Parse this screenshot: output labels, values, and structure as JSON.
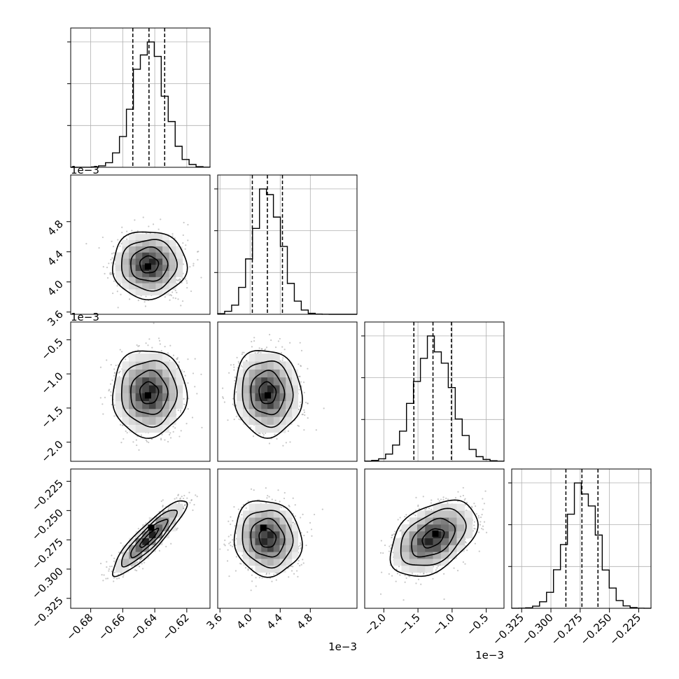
{
  "chart_data": {
    "type": "corner",
    "num_parameters": 4,
    "grid": true,
    "quantile_lines": "dashed",
    "parameters": [
      {
        "range": [
          -0.6925,
          -0.6055
        ],
        "x_ticks": [
          -0.68,
          -0.66,
          -0.64,
          -0.62
        ],
        "x_tick_labels": [
          "−0.68",
          "−0.66",
          "−0.64",
          "−0.62"
        ],
        "offset_text": "",
        "mean": -0.6436,
        "sd": 0.0098,
        "quantiles": [
          -0.6537,
          -0.6436,
          -0.6338
        ]
      },
      {
        "range": [
          3.57,
          5.42
        ],
        "x_ticks": [
          3.6,
          4.0,
          4.4,
          4.8
        ],
        "x_tick_labels": [
          "3.6",
          "4.0",
          "4.4",
          "4.8"
        ],
        "y_ticks": [
          3.6,
          4.0,
          4.4,
          4.8
        ],
        "y_tick_labels": [
          "3.6",
          "4.0",
          "4.4",
          "4.8"
        ],
        "offset_text": "1e−3",
        "mean": 4.23,
        "sd": 0.19,
        "quantiles": [
          4.03,
          4.23,
          4.43
        ]
      },
      {
        "range": [
          -2.28,
          -0.24
        ],
        "x_ticks": [
          -2.0,
          -1.5,
          -1.0,
          -0.5
        ],
        "x_tick_labels": [
          "−2.0",
          "−1.5",
          "−1.0",
          "−0.5"
        ],
        "y_ticks": [
          -2.0,
          -1.5,
          -1.0,
          -0.5
        ],
        "y_tick_labels": [
          "−2.0",
          "−1.5",
          "−1.0",
          "−0.5"
        ],
        "offset_text": "1e−3",
        "mean": -1.28,
        "sd": 0.27,
        "quantiles": [
          -1.56,
          -1.28,
          -1.01
        ]
      },
      {
        "range": [
          -0.3335,
          -0.2145
        ],
        "x_ticks": [
          -0.325,
          -0.3,
          -0.275,
          -0.25,
          -0.225
        ],
        "x_tick_labels": [
          "−0.325",
          "−0.300",
          "−0.275",
          "−0.250",
          "−0.225"
        ],
        "y_ticks": [
          -0.325,
          -0.3,
          -0.275,
          -0.25,
          -0.225
        ],
        "y_tick_labels": [
          "−0.325",
          "−0.300",
          "−0.275",
          "−0.250",
          "−0.225"
        ],
        "offset_text": "",
        "mean": -0.2735,
        "sd": 0.0137,
        "quantiles": [
          -0.2872,
          -0.2735,
          -0.2598
        ]
      }
    ],
    "pairs": [
      {
        "row": 1,
        "col": 0,
        "correlation": 0.0,
        "peak": [
          -0.644,
          4.2
        ]
      },
      {
        "row": 2,
        "col": 0,
        "correlation": 0.0,
        "peak": [
          -0.644,
          -1.32
        ]
      },
      {
        "row": 2,
        "col": 1,
        "correlation": -0.05,
        "peak": [
          4.24,
          -1.32
        ]
      },
      {
        "row": 3,
        "col": 0,
        "correlation": 0.9,
        "peak": [
          -0.642,
          -0.265
        ]
      },
      {
        "row": 3,
        "col": 1,
        "correlation": -0.08,
        "peak": [
          4.18,
          -0.265
        ]
      },
      {
        "row": 3,
        "col": 2,
        "correlation": 0.42,
        "peak": [
          -1.24,
          -0.27
        ]
      }
    ],
    "contour_levels_sigma": [
      0.5,
      1.0,
      1.5,
      2.0
    ]
  }
}
